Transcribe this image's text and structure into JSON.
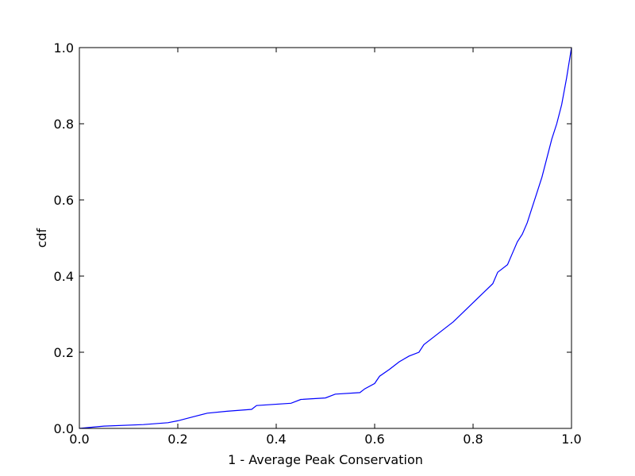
{
  "chart_data": {
    "type": "line",
    "xlabel": "1 - Average Peak Conservation",
    "ylabel": "cdf",
    "x": [
      0,
      0.05,
      0.13,
      0.18,
      0.2,
      0.23,
      0.26,
      0.3,
      0.35,
      0.36,
      0.43,
      0.45,
      0.5,
      0.52,
      0.57,
      0.58,
      0.6,
      0.61,
      0.63,
      0.65,
      0.67,
      0.69,
      0.7,
      0.72,
      0.74,
      0.76,
      0.78,
      0.8,
      0.82,
      0.84,
      0.85,
      0.87,
      0.88,
      0.89,
      0.9,
      0.91,
      0.92,
      0.93,
      0.94,
      0.95,
      0.96,
      0.97,
      0.98,
      0.99,
      1.0
    ],
    "values": [
      0,
      0.006,
      0.01,
      0.015,
      0.02,
      0.03,
      0.04,
      0.045,
      0.05,
      0.06,
      0.066,
      0.076,
      0.08,
      0.09,
      0.094,
      0.104,
      0.118,
      0.137,
      0.155,
      0.175,
      0.19,
      0.2,
      0.22,
      0.24,
      0.26,
      0.28,
      0.305,
      0.33,
      0.355,
      0.38,
      0.41,
      0.43,
      0.46,
      0.49,
      0.51,
      0.54,
      0.58,
      0.62,
      0.66,
      0.71,
      0.76,
      0.8,
      0.85,
      0.92,
      1.0
    ],
    "color": "#0000ff",
    "xlim": [
      0,
      1
    ],
    "ylim": [
      0,
      1
    ],
    "xticks": [
      {
        "value": 0,
        "label": "0.0"
      },
      0.2,
      0.4,
      0.6,
      0.8,
      {
        "value": 1,
        "label": "1.0"
      }
    ],
    "yticks": [
      {
        "value": 0,
        "label": "0.0"
      },
      0.2,
      0.4,
      0.6,
      0.8,
      {
        "value": 1,
        "label": "1.0"
      }
    ],
    "grid": false
  }
}
